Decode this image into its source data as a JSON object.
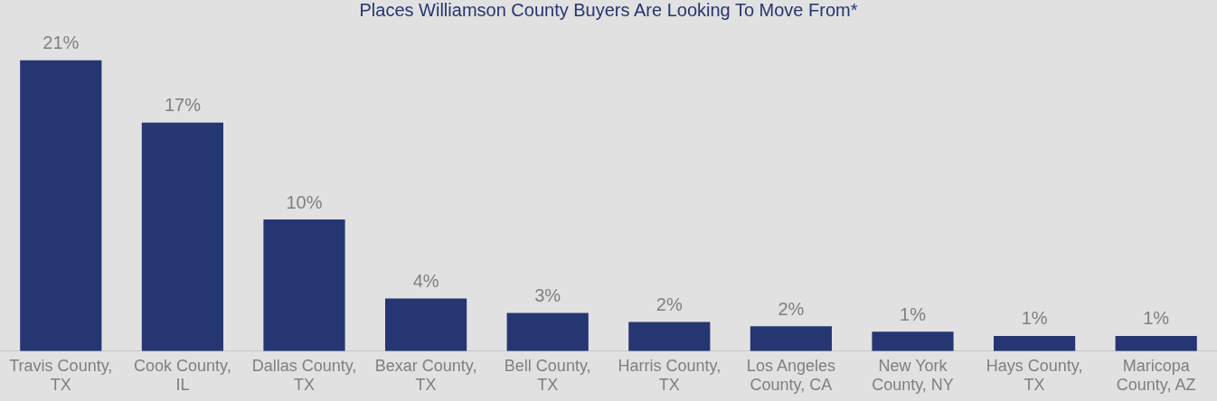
{
  "chart_data": {
    "type": "bar",
    "title": "Places Williamson County Buyers Are Looking To Move From*",
    "categories": [
      "Travis County, TX",
      "Cook County, IL",
      "Dallas County, TX",
      "Bexar County, TX",
      "Bell County, TX",
      "Harris County, TX",
      "Los Angeles County, CA",
      "New York County, NY",
      "Hays County, TX",
      "Maricopa County, AZ"
    ],
    "values": [
      21,
      16.5,
      9.5,
      3.8,
      2.75,
      2.1,
      1.8,
      1.4,
      1.1,
      1.1
    ],
    "value_labels": [
      "21%",
      "17%",
      "10%",
      "4%",
      "3%",
      "2%",
      "2%",
      "1%",
      "1%",
      "1%"
    ],
    "color": "#263672",
    "grid": false,
    "legend": false
  }
}
